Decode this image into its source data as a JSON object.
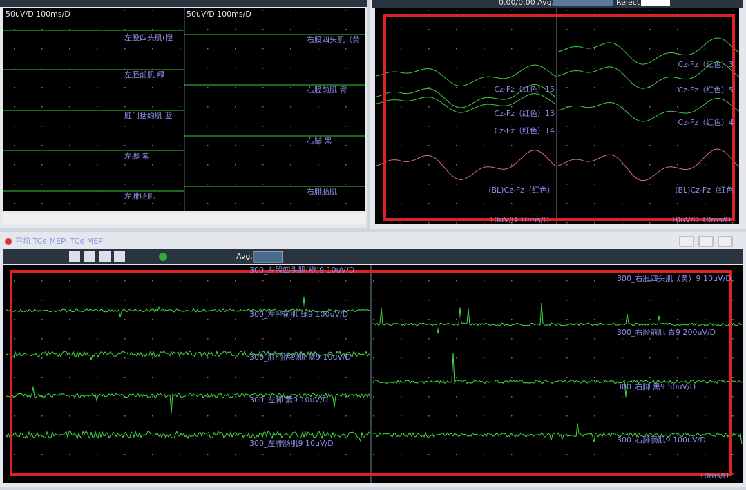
{
  "top_left_panel": {
    "scales": [
      "50uV/D  100ms/D",
      "50uV/D  100ms/D"
    ],
    "left_channels": [
      "左股四头肌(橙",
      "左胫前肌  绿",
      "肛门括约肌  蓝",
      "左脚  紫",
      "左腓肠肌"
    ],
    "right_channels": [
      "右股四头肌（黄",
      "右胫前肌  青",
      "右脚  黑",
      "右腓肠肌"
    ]
  },
  "top_right_panel": {
    "toolbar_counter": "0.00/0.00  Avg.",
    "toolbar_reject": "Reject",
    "left_traces": [
      "Cz-Fz（红色）15",
      "Cz-Fz（红色）13",
      "Cz-Fz（红色）14",
      "(BL)Cz-Fz（红色）"
    ],
    "right_traces": [
      "Cz-Fz（红色）3",
      "Cz-Fz（红色）5",
      "Cz-Fz（红色）4",
      "(BL)Cz-Fz（红色"
    ],
    "scales": [
      "10uV/D  10ms/D",
      "10uV/D  10ms/D"
    ]
  },
  "bottom_window": {
    "title": "平均 TCe MEP- TCe MEP",
    "toolbar_avg": "Avg.",
    "left_traces": [
      "300_左股四头肌(橙)9  10uV/D",
      "300_左胫前肌  绿9  100uV/D",
      "300_肛门括约肌  蓝9  10uV/D",
      "300_左脚  紫9  10uV/D",
      "300_左腓肠肌9  10uV/D"
    ],
    "right_traces": [
      "300_右股四头肌（黄）9  10uV/D",
      "300_右胫前肌  青9  200uV/D",
      "300_右脚  黑9  50uV/D",
      "300_右腓肠肌9  100uV/D"
    ],
    "scale": "10ms/D"
  }
}
